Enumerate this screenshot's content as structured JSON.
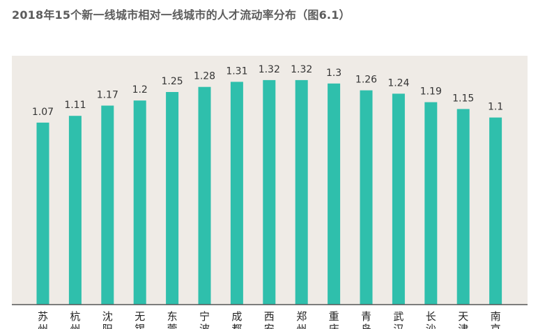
{
  "title": "2018年15个新一线城市相对一线城市的人才流动率分布（图6.1）",
  "colors": {
    "bar": "#2fbfac",
    "plot_background": "#efebe6",
    "axis_line": "#555555"
  },
  "chart_data": {
    "type": "bar",
    "title": "2018年15个新一线城市相对一线城市的人才流动率分布（图6.1）",
    "xlabel": "",
    "ylabel": "",
    "grid": false,
    "categories": [
      "苏州",
      "杭州",
      "沈阳",
      "无锡",
      "东莞",
      "宁波",
      "成都",
      "西安",
      "郑州",
      "重庆",
      "青岛",
      "武汉",
      "长沙",
      "天津",
      "南京"
    ],
    "values": [
      1.07,
      1.11,
      1.17,
      1.2,
      1.25,
      1.28,
      1.31,
      1.32,
      1.32,
      1.3,
      1.26,
      1.24,
      1.19,
      1.15,
      1.1
    ],
    "value_labels": [
      "1.07",
      "1.11",
      "1.17",
      "1.2",
      "1.25",
      "1.28",
      "1.31",
      "1.32",
      "1.32",
      "1.3",
      "1.26",
      "1.24",
      "1.19",
      "1.15",
      "1.1"
    ]
  }
}
